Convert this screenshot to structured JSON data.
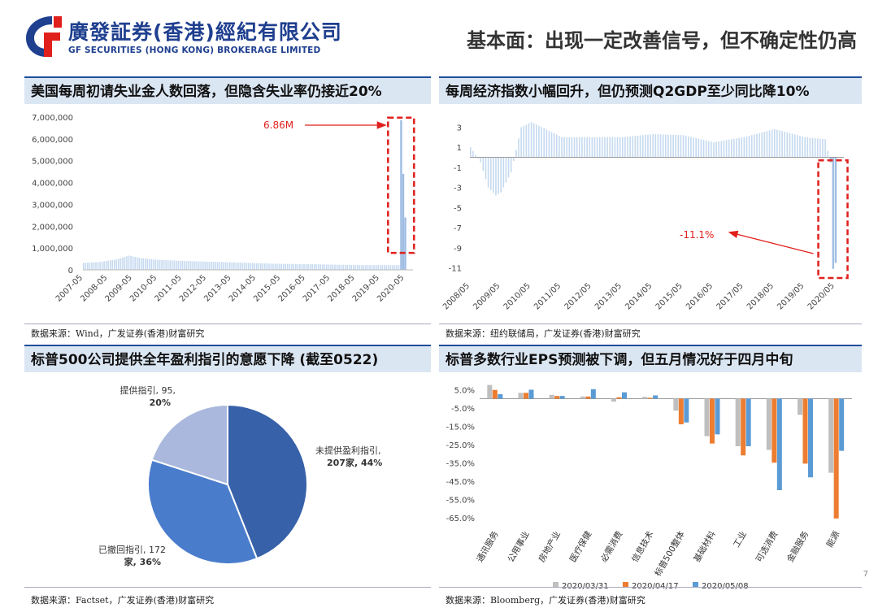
{
  "header": {
    "company_cn": "廣發証券(香港)經紀有限公司",
    "company_en": "GF SECURITIES (HONG KONG) BROKERAGE LIMITED",
    "title": "基本面：出现一定改善信号，但不确定性仍高"
  },
  "page_number": "7",
  "colors": {
    "brand": "#1f3f8f",
    "title_bg": "#dbe6f3",
    "bar_light": "#c5d9f0",
    "highlight": "#e0201c"
  },
  "panels": [
    {
      "title": "美国每周初请失业金人数回落，但隐含失业率仍接近20%",
      "source": "数据来源：Wind，广发证券(香港)财富研究",
      "annotation": "6.86M"
    },
    {
      "title": "每周经济指数小幅回升，但仍预测Q2GDP至少同比降10%",
      "source": "数据来源：纽约联储局，广发证券(香港)财富研究",
      "annotation": "-11.1%"
    },
    {
      "title": "标普500公司提供全年盈利指引的意愿下降 (截至0522)",
      "source": "数据来源：Factset，广发证券(香港)财富研究"
    },
    {
      "title": "标普多数行业EPS预测被下调，但五月情况好于四月中旬",
      "source": "数据来源：Bloomberg，广发证券(香港)财富研究"
    }
  ],
  "chart_data": [
    {
      "type": "bar",
      "x_tick_labels": [
        "2007-05",
        "2008-05",
        "2009-05",
        "2010-05",
        "2011-05",
        "2012-05",
        "2013-05",
        "2014-05",
        "2015-05",
        "2016-05",
        "2017-05",
        "2018-05",
        "2019-05",
        "2020-05"
      ],
      "y_tick_labels": [
        "0",
        "1,000,000",
        "2,000,000",
        "3,000,000",
        "4,000,000",
        "5,000,000",
        "6,000,000",
        "7,000,000"
      ],
      "ylim": [
        0,
        7000000
      ],
      "series": [
        {
          "x": [
            "2007-05",
            "2008-01",
            "2008-09",
            "2009-03",
            "2009-09",
            "2010-05",
            "2011-05",
            "2012-05",
            "2013-05",
            "2014-05",
            "2015-05",
            "2016-05",
            "2017-05",
            "2018-05",
            "2019-05",
            "2019-12",
            "2020-02",
            "2020-03",
            "2020-04",
            "2020-05"
          ],
          "values": [
            320000,
            360000,
            480000,
            650000,
            540000,
            460000,
            410000,
            375000,
            345000,
            305000,
            275000,
            265000,
            240000,
            220000,
            215000,
            215000,
            215000,
            6860000,
            4400000,
            2400000
          ]
        }
      ]
    },
    {
      "type": "bar",
      "x_tick_labels": [
        "2008/05",
        "2009/05",
        "2010/05",
        "2011/05",
        "2012/05",
        "2013/05",
        "2014/05",
        "2015/05",
        "2016/05",
        "2017/05",
        "2018/05",
        "2019/05",
        "2020/05"
      ],
      "y_tick_labels": [
        "3",
        "1",
        "-1",
        "-3",
        "-5",
        "-7",
        "-9",
        "-11"
      ],
      "ylim": [
        -12,
        4
      ],
      "series": [
        {
          "x": [
            "2008/05",
            "2008/09",
            "2008/12",
            "2009/03",
            "2009/05",
            "2009/09",
            "2010/01",
            "2010/05",
            "2011/05",
            "2012/05",
            "2013/05",
            "2014/05",
            "2015/05",
            "2016/05",
            "2017/05",
            "2018/05",
            "2019/05",
            "2020/01",
            "2020/03",
            "2020/04",
            "2020/05"
          ],
          "values": [
            1.0,
            -0.5,
            -3.0,
            -3.8,
            -3.5,
            -1.5,
            3.0,
            3.5,
            2.0,
            2.0,
            2.0,
            2.3,
            2.2,
            1.5,
            2.0,
            2.8,
            2.0,
            1.8,
            -0.5,
            -11.1,
            -10.5
          ]
        }
      ]
    },
    {
      "type": "pie",
      "slices": [
        {
          "label": "未提供盈利指引,",
          "label2": "207家, 44%",
          "value": 44,
          "color": "#3761a8"
        },
        {
          "label": "已撤回指引, 172",
          "label2": "家, 36%",
          "value": 36,
          "color": "#4a7ccc"
        },
        {
          "label": "提供指引, 95,",
          "label2": "20%",
          "value": 20,
          "color": "#a9b8dc"
        }
      ]
    },
    {
      "type": "bar",
      "categories": [
        "通讯服务",
        "公用事业",
        "房地产业",
        "医疗保健",
        "必需消费",
        "信息技术",
        "标普500整体",
        "基础材料",
        "工业",
        "可选消费",
        "金融服务",
        "能源"
      ],
      "y_tick_labels": [
        "5.0%",
        "-5.0%",
        "-15.0%",
        "-25.0%",
        "-35.0%",
        "-45.0%",
        "-55.0%",
        "-65.0%"
      ],
      "ylim": [
        -70,
        10
      ],
      "series": [
        {
          "name": "2020/03/31",
          "color": "#bfbfbf",
          "values": [
            7.5,
            3.2,
            2.1,
            1.2,
            -1.6,
            1.0,
            -6.5,
            -20.5,
            -26.0,
            -28.0,
            -8.8,
            -40.5
          ]
        },
        {
          "name": "2020/04/17",
          "color": "#ed7d31",
          "values": [
            4.8,
            3.2,
            1.5,
            1.2,
            0.8,
            0.5,
            -14.0,
            -24.5,
            -31.0,
            -35.0,
            -35.5,
            -65.5
          ]
        },
        {
          "name": "2020/05/08",
          "color": "#5b9bd5",
          "values": [
            2.5,
            4.9,
            1.5,
            5.2,
            3.5,
            1.8,
            -13.0,
            -19.5,
            -26.0,
            -50.0,
            -43.0,
            -28.5
          ]
        }
      ]
    }
  ]
}
